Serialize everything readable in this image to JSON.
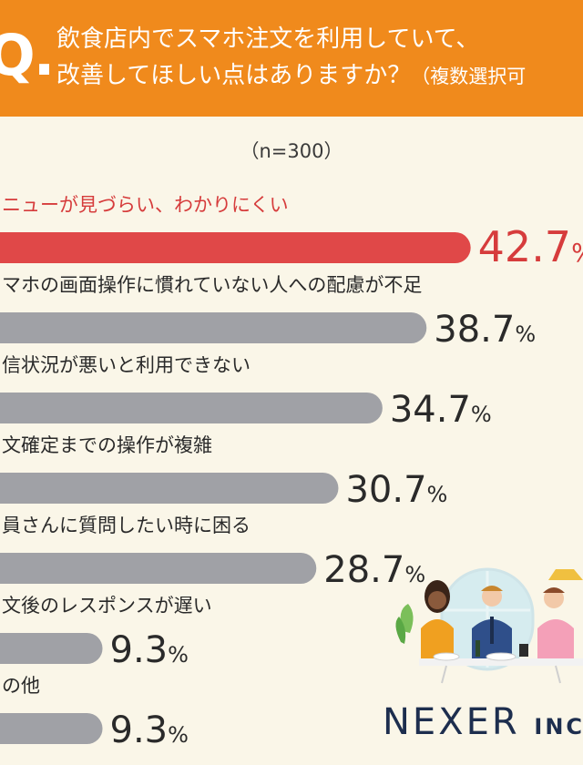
{
  "header": {
    "q": "Q.",
    "line1": "飲食店内でスマホ注文を利用していて、",
    "line2": "改善してほしい点はありますか？",
    "note": "（複数選択可"
  },
  "sample": "（n=300）",
  "logo": {
    "main": "NEXER",
    "sub": "INC"
  },
  "chart_data": {
    "type": "bar",
    "orientation": "horizontal",
    "categories": [
      "ニューが見づらい、わかりにくい",
      "マホの画面操作に慣れていない人への配慮が不足",
      "信状況が悪いと利用できない",
      "文確定までの操作が複雑",
      "員さんに質問したい時に困る",
      "文後のレスポンスが遅い",
      "の他"
    ],
    "values": [
      42.7,
      38.7,
      34.7,
      30.7,
      28.7,
      9.3,
      9.3
    ],
    "unit": "%",
    "highlight_index": 0,
    "colors": {
      "highlight": "#e04848",
      "default": "#a0a1a6",
      "highlight_text": "#d63c3c",
      "text": "#2a2a2a"
    }
  }
}
